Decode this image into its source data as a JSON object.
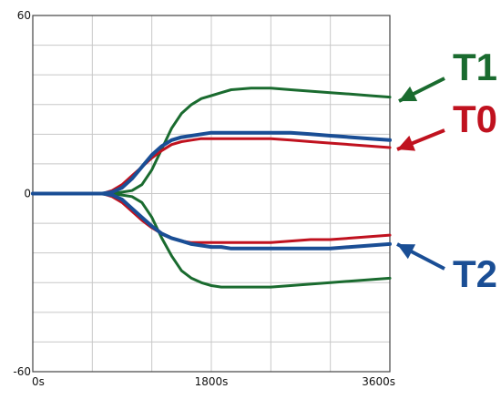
{
  "chart_data": {
    "type": "line",
    "title": "",
    "xlabel": "",
    "ylabel": "",
    "xlim": [
      0,
      3600
    ],
    "ylim": [
      -60,
      60
    ],
    "x_tick_labels": [
      "0s",
      "1800s",
      "3600s"
    ],
    "y_tick_labels": [
      "60",
      "0",
      "-60"
    ],
    "grid": true,
    "colors": {
      "T0": "#c0121f",
      "T1": "#1a6b2f",
      "T2": "#1a4e95",
      "grid": "#c8c8c8",
      "axis": "#444444"
    },
    "annotations": [
      {
        "label": "T1",
        "series": "T1"
      },
      {
        "label": "T0",
        "series": "T0"
      },
      {
        "label": "T2",
        "series": "T2"
      }
    ],
    "series": [
      {
        "name": "T1",
        "color": "#1a6b2f",
        "branch": "upper",
        "x": [
          0,
          300,
          600,
          700,
          800,
          900,
          1000,
          1100,
          1200,
          1300,
          1400,
          1500,
          1600,
          1700,
          1800,
          1900,
          2000,
          2200,
          2400,
          2600,
          2800,
          3000,
          3200,
          3400,
          3600
        ],
        "y": [
          0,
          0,
          0,
          0,
          0,
          0.5,
          1,
          3,
          8,
          15,
          22,
          27,
          30,
          32,
          33,
          34,
          35,
          35.5,
          35.5,
          35,
          34.5,
          34,
          33.5,
          33,
          32.5
        ]
      },
      {
        "name": "T1",
        "color": "#1a6b2f",
        "branch": "lower",
        "x": [
          0,
          300,
          600,
          700,
          800,
          900,
          1000,
          1100,
          1200,
          1300,
          1400,
          1500,
          1600,
          1700,
          1800,
          1900,
          2000,
          2200,
          2400,
          2600,
          2800,
          3000,
          3200,
          3400,
          3600
        ],
        "y": [
          0,
          0,
          0,
          0,
          0,
          -0.5,
          -1,
          -3,
          -8,
          -15,
          -21,
          -26,
          -28.5,
          -30,
          -31,
          -31.5,
          -31.5,
          -31.5,
          -31.5,
          -31,
          -30.5,
          -30,
          -29.5,
          -29,
          -28.5
        ]
      },
      {
        "name": "T0",
        "color": "#c0121f",
        "branch": "upper",
        "x": [
          0,
          300,
          600,
          700,
          800,
          900,
          1000,
          1100,
          1200,
          1300,
          1400,
          1500,
          1600,
          1700,
          1800,
          1900,
          2000,
          2200,
          2400,
          2600,
          2800,
          3000,
          3200,
          3400,
          3600
        ],
        "y": [
          0,
          0,
          0,
          0,
          1,
          3,
          6,
          9,
          12,
          14.5,
          16.5,
          17.5,
          18,
          18.5,
          18.5,
          18.5,
          18.5,
          18.5,
          18.5,
          18,
          17.5,
          17,
          16.5,
          16,
          15.5
        ]
      },
      {
        "name": "T0",
        "color": "#c0121f",
        "branch": "lower",
        "x": [
          0,
          300,
          600,
          700,
          800,
          900,
          1000,
          1100,
          1200,
          1300,
          1400,
          1500,
          1600,
          1700,
          1800,
          1900,
          2000,
          2200,
          2400,
          2600,
          2800,
          3000,
          3200,
          3400,
          3600
        ],
        "y": [
          0,
          0,
          0,
          0,
          -1,
          -3,
          -6,
          -9,
          -11.5,
          -13.5,
          -15,
          -16,
          -16.5,
          -16.5,
          -16.5,
          -16.5,
          -16.5,
          -16.5,
          -16.5,
          -16,
          -15.5,
          -15.5,
          -15,
          -14.5,
          -14
        ]
      },
      {
        "name": "T2",
        "color": "#1a4e95",
        "branch": "upper",
        "x": [
          0,
          300,
          600,
          700,
          800,
          900,
          1000,
          1100,
          1200,
          1300,
          1400,
          1500,
          1600,
          1700,
          1800,
          1900,
          2000,
          2200,
          2400,
          2600,
          2800,
          3000,
          3200,
          3400,
          3600
        ],
        "y": [
          0,
          0,
          0,
          0,
          0.5,
          2,
          5,
          9,
          13,
          16,
          18,
          19,
          19.5,
          20,
          20.5,
          20.5,
          20.5,
          20.5,
          20.5,
          20.5,
          20,
          19.5,
          19,
          18.5,
          18
        ]
      },
      {
        "name": "T2",
        "color": "#1a4e95",
        "branch": "lower",
        "x": [
          0,
          300,
          600,
          700,
          800,
          900,
          1000,
          1100,
          1200,
          1300,
          1400,
          1500,
          1600,
          1700,
          1800,
          1900,
          2000,
          2200,
          2400,
          2600,
          2800,
          3000,
          3200,
          3400,
          3600
        ],
        "y": [
          0,
          0,
          0,
          0,
          -0.5,
          -2,
          -5,
          -8,
          -11,
          -13.5,
          -15,
          -16,
          -17,
          -17.5,
          -18,
          -18,
          -18.5,
          -18.5,
          -18.5,
          -18.5,
          -18.5,
          -18.5,
          -18,
          -17.5,
          -17
        ]
      }
    ]
  }
}
